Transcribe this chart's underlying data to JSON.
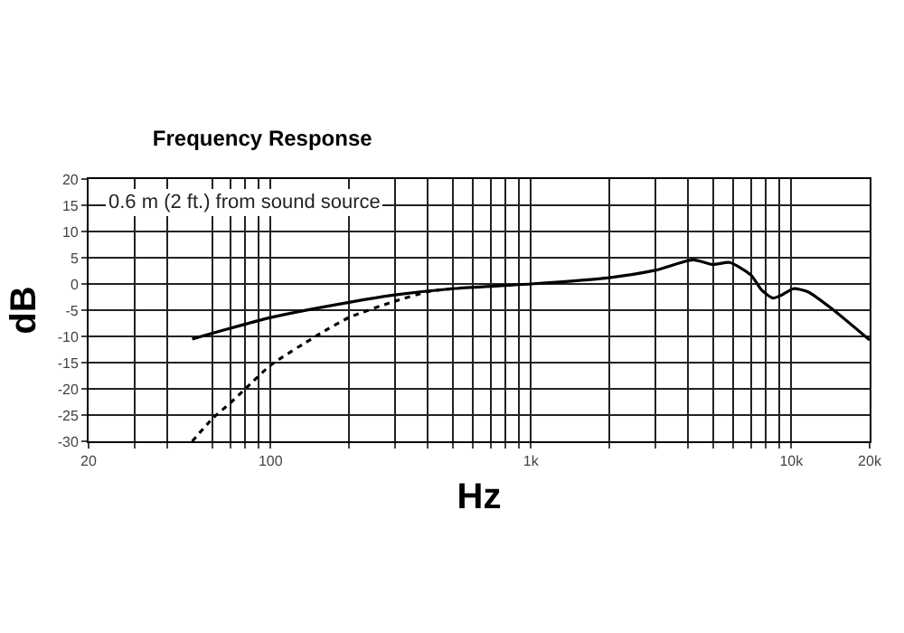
{
  "chart_data": {
    "type": "line",
    "title": "Frequency Response",
    "xlabel": "Hz",
    "ylabel": "dB",
    "annotations": [
      "0.6 m (2 ft.) from sound source"
    ],
    "log": "x",
    "grid": true,
    "marker": "none",
    "xlim": [
      20,
      20000
    ],
    "ylim": [
      -30,
      20
    ],
    "xticks": [
      20,
      {
        "value": 30,
        "label": null
      },
      {
        "value": 40,
        "label": null
      },
      {
        "value": 60,
        "label": null
      },
      {
        "value": 70,
        "label": null
      },
      {
        "value": 80,
        "label": null
      },
      {
        "value": 90,
        "label": null
      },
      100,
      {
        "value": 200,
        "label": null
      },
      {
        "value": 300,
        "label": null
      },
      {
        "value": 400,
        "label": null
      },
      {
        "value": 500,
        "label": null
      },
      {
        "value": 600,
        "label": null
      },
      {
        "value": 700,
        "label": null
      },
      {
        "value": 800,
        "label": null
      },
      {
        "value": 900,
        "label": null
      },
      {
        "value": 1000,
        "label": "1k"
      },
      {
        "value": 2000,
        "label": null
      },
      {
        "value": 3000,
        "label": null
      },
      {
        "value": 4000,
        "label": null
      },
      {
        "value": 5000,
        "label": null
      },
      {
        "value": 6000,
        "label": null
      },
      {
        "value": 7000,
        "label": null
      },
      {
        "value": 8000,
        "label": null
      },
      {
        "value": 9000,
        "label": null
      },
      {
        "value": 10000,
        "label": "10k"
      },
      {
        "value": 20000,
        "label": "20k"
      }
    ],
    "yticks": [
      -30,
      -25,
      -20,
      -15,
      -10,
      -5,
      0,
      5,
      10,
      15,
      20
    ],
    "series": [
      {
        "color": "#000000",
        "line_style": "solid",
        "x": [
          50,
          100,
          200,
          300,
          500,
          1000,
          2000,
          3000,
          4200,
          5000,
          5800,
          7000,
          7700,
          8500,
          9200,
          10200,
          11600,
          14300,
          20000
        ],
        "values": [
          -10.5,
          -6.4,
          -3.5,
          -2.1,
          -0.9,
          0,
          1.2,
          2.6,
          4.6,
          3.7,
          4.1,
          1.7,
          -1.2,
          -2.7,
          -2.1,
          -0.9,
          -1.5,
          -4.7,
          -10.7
        ]
      },
      {
        "color": "#000000",
        "line_style": "dotted",
        "x": [
          50,
          60,
          70,
          80,
          100,
          150,
          200,
          300,
          400,
          500
        ],
        "values": [
          -30,
          -25.6,
          -22.7,
          -20,
          -15.5,
          -9.9,
          -6.4,
          -3.3,
          -1.5,
          -0.9
        ]
      }
    ]
  }
}
